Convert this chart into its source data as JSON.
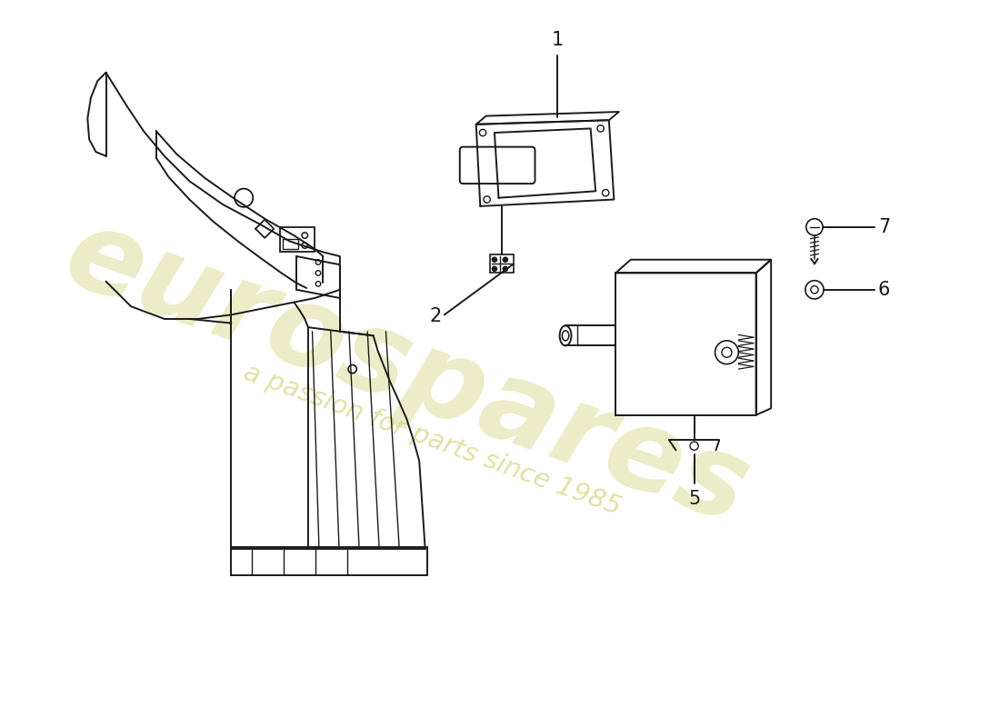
{
  "background_color": "#ffffff",
  "line_color": "#1a1a1a",
  "watermark_text": "eurospares",
  "watermark_subtext": "a passion for parts since 1985",
  "watermark_color_hex": "#c8c860",
  "lw": 1.4
}
